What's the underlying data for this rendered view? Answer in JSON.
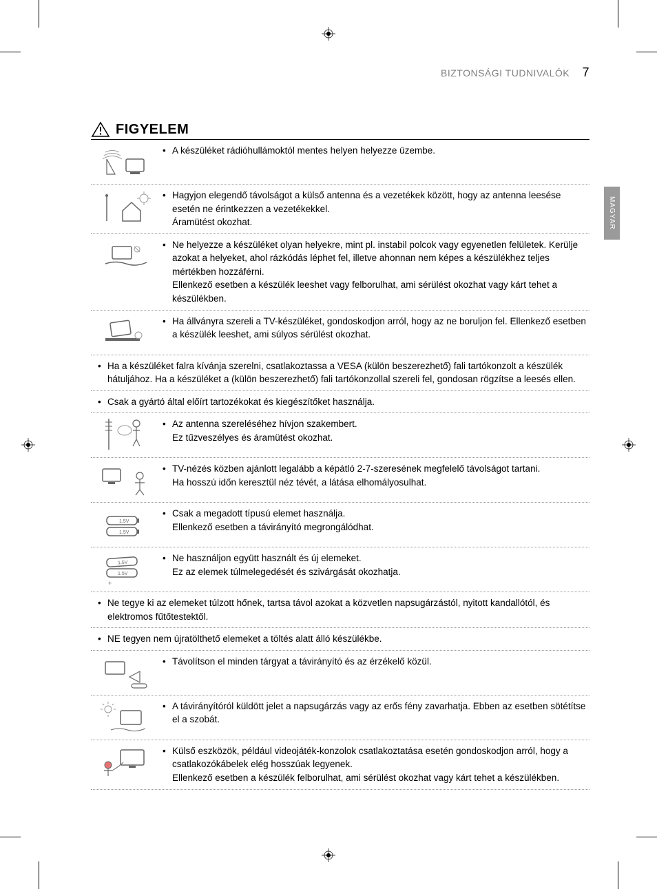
{
  "header": {
    "section_title": "BIZTONSÁGI TUDNIVALÓK",
    "page_number": "7"
  },
  "side_tab": "MAGYAR",
  "warning_heading": "FIGYELEM",
  "items": [
    {
      "type": "icon",
      "icon": "radio-waves-tv",
      "text": "A készüléket rádióhullámoktól mentes helyen helyezze üzembe."
    },
    {
      "type": "icon",
      "icon": "antenna-house",
      "text": "Hagyjon elegendő távolságot a külső antenna és a vezetékek között, hogy az antenna leesése esetén ne érintkezzen a vezetékekkel.\nÁramütést okozhat."
    },
    {
      "type": "icon",
      "icon": "unstable-surface",
      "text": "Ne helyezze a készüléket olyan helyekre, mint pl. instabil polcok vagy egyenetlen felületek. Kerülje azokat a helyeket, ahol rázkódás léphet fel, illetve ahonnan nem képes a készülékhez teljes mértékben hozzáférni.\nEllenkező esetben a készülék leeshet vagy felborulhat, ami sérülést okozhat vagy kárt tehet a készülékben."
    },
    {
      "type": "icon",
      "icon": "tv-stand-tip",
      "text": "Ha állványra szereli a TV-készüléket, gondoskodjon arról, hogy az ne boruljon fel. Ellenkező esetben a készülék leeshet, ami súlyos sérülést okozhat."
    },
    {
      "type": "full",
      "text": "Ha a készüléket falra kívánja szerelni, csatlakoztassa a VESA (külön beszerezhető) fali tartókonzolt a készülék hátuljához. Ha a készüléket a (külön beszerezhető) fali tartókonzollal szereli fel, gondosan rögzítse a leesés ellen."
    },
    {
      "type": "full",
      "text": "Csak a gyártó által előírt tartozékokat és kiegészítőket használja."
    },
    {
      "type": "icon",
      "icon": "installer-antenna",
      "text": "Az antenna szereléséhez hívjon szakembert.\nEz tűzveszélyes és áramütést okozhat."
    },
    {
      "type": "icon",
      "icon": "tv-distance-viewer",
      "text": "TV-nézés közben ajánlott legalább a képátló 2-7-szeresének megfelelő távolságot tartani.\nHa hosszú időn keresztül néz tévét, a látása elhomályosulhat."
    },
    {
      "type": "icon",
      "icon": "batteries-same",
      "text": "Csak a megadott típusú elemet használja.\nEllenkező esetben a távirányító megrongálódhat."
    },
    {
      "type": "icon",
      "icon": "batteries-mixed",
      "text": "Ne használjon együtt használt és új elemeket.\nEz az elemek túlmelegedését és szivárgását okozhatja."
    },
    {
      "type": "full",
      "text": "Ne tegye ki az elemeket túlzott hőnek, tartsa távol azokat a közvetlen napsugárzástól, nyitott kandallótól, és elektromos fűtőtestektől."
    },
    {
      "type": "full",
      "text": "NE tegyen nem újratölthető elemeket a töltés alatt álló készülékbe."
    },
    {
      "type": "icon",
      "icon": "remote-obstacle",
      "text": "Távolítson el minden tárgyat a távirányító és az érzékelő közül."
    },
    {
      "type": "icon",
      "icon": "sunlight-tv",
      "text": "A távirányítóról küldött jelet a napsugárzás vagy az erős fény zavarhatja. Ebben az esetben sötétítse el a szobát."
    },
    {
      "type": "icon",
      "icon": "gaming-cable",
      "text": "Külső eszközök, például videojáték-konzolok csatlakoztatása esetén gondoskodjon arról, hogy a csatlakozókábelek elég hosszúak legyenek.\nEllenkező esetben a készülék felborulhat, ami sérülést okozhat vagy kárt tehet a készülékben."
    }
  ],
  "icon_svgs": {
    "radio-waves-tv": "<svg viewBox='0 0 78 50'><rect x='40' y='20' width='26' height='18' rx='2' fill='none' stroke='#666' stroke-width='1.5'/><rect x='46' y='39' width='14' height='3' fill='#666'/><path d='M10 10 Q20 5 30 10 M8 15 Q20 8 32 15 M6 20 Q20 11 34 20' fill='none' stroke='#999' stroke-width='1'/><path d='M12 42 L12 20 L24 42 Z' fill='none' stroke='#666' stroke-width='1.2'/></svg>",
    "antenna-house": "<svg viewBox='0 0 78 50'><line x1='12' y1='8' x2='12' y2='45' stroke='#666' stroke-width='1.5'/><circle cx='12' cy='8' r='2' fill='#666'/><path d='M35 30 L48 18 L61 30 L61 45 L35 45 Z' fill='none' stroke='#666' stroke-width='1.5'/><circle cx='66' cy='12' r='6' fill='none' stroke='#999' stroke-width='1'/><path d='M66 6 L66 2 M66 18 L66 22 M60 12 L56 12 M72 12 L76 12' stroke='#999' stroke-width='1'/></svg>",
    "unstable-surface": "<svg viewBox='0 0 78 50'><rect x='20' y='10' width='28' height='18' rx='2' fill='none' stroke='#666' stroke-width='1.5'/><path d='M10 35 Q25 30 40 35 Q55 40 70 33' fill='none' stroke='#666' stroke-width='1.5'/><circle cx='56' cy='14' r='4' fill='none' stroke='#999' stroke-width='1'/><line x1='52' y1='10' x2='60' y2='18' stroke='#999' stroke-width='1'/></svg>",
    "tv-stand-tip": "<svg viewBox='0 0 78 50'><rect x='18' y='8' width='28' height='20' rx='2' fill='none' stroke='#666' stroke-width='1.5' transform='rotate(-8 32 18)'/><rect x='10' y='32' width='50' height='4' fill='#666'/><circle cx='58' cy='28' r='5' fill='none' stroke='#999' stroke-width='1'/></svg>",
    "installer-antenna": "<svg viewBox='0 0 78 60'><circle cx='55' cy='12' r='5' fill='none' stroke='#666' stroke-width='1.2'/><path d='M55 17 L55 35 M50 22 L60 22 M50 45 L55 35 L60 45' fill='none' stroke='#666' stroke-width='1.2'/><line x1='15' y1='5' x2='15' y2='50' stroke='#666' stroke-width='1.5'/><path d='M10 10 L20 10 M10 16 L20 16 M10 22 L20 22' stroke='#666' stroke-width='1'/><ellipse cx='38' cy='22' rx='10' ry='7' fill='none' stroke='#999' stroke-width='1'/></svg>",
    "tv-distance-viewer": "<svg viewBox='0 0 78 50'><rect x='6' y='8' width='26' height='18' rx='2' fill='none' stroke='#666' stroke-width='1.5'/><rect x='14' y='27' width='10' height='3' fill='#666'/><circle cx='60' cy='18' r='5' fill='none' stroke='#666' stroke-width='1.2'/><path d='M60 23 L60 38 M53 28 L67 28 M54 46 L60 38 L66 46' fill='none' stroke='#666' stroke-width='1.2'/></svg>",
    "batteries-same": "<svg viewBox='0 0 78 50'><rect x='12' y='12' width='44' height='12' rx='5' fill='none' stroke='#666' stroke-width='1.5'/><rect x='56' y='15' width='3' height='6' fill='#666'/><text x='30' y='21' font-size='7' fill='#666'>1.5V</text><rect x='12' y='28' width='44' height='12' rx='5' fill='none' stroke='#666' stroke-width='1.5'/><rect x='56' y='31' width='3' height='6' fill='#666'/><text x='30' y='37' font-size='7' fill='#666'>1.5V</text></svg>",
    "batteries-mixed": "<svg viewBox='0 0 78 56'><rect x='12' y='10' width='44' height='12' rx='5' fill='none' stroke='#666' stroke-width='1.5' transform='rotate(-4 34 16)'/><text x='28' y='19' font-size='7' fill='#666' transform='rotate(-4 34 16)'>1.5V</text><rect x='12' y='26' width='44' height='12' rx='5' fill='none' stroke='#666' stroke-width='1.5'/><text x='28' y='35' font-size='7' fill='#666'>1.5V</text><text x='14' y='50' font-size='9' fill='#666'>+</text></svg>",
    "remote-obstacle": "<svg viewBox='0 0 78 50'><rect x='10' y='8' width='28' height='18' rx='2' fill='none' stroke='#666' stroke-width='1.5'/><path d='M45 30 L60 22 L60 38 Z' fill='none' stroke='#666' stroke-width='1.2'/><rect x='48' y='40' width='22' height='6' rx='3' fill='none' stroke='#666' stroke-width='1.2'/></svg>",
    "sunlight-tv": "<svg viewBox='0 0 78 50'><circle cx='14' cy='12' r='5' fill='none' stroke='#999' stroke-width='1'/><path d='M14 4 L14 1 M14 20 L14 23 M6 12 L3 12 M22 12 L25 12 M8 6 L6 4 M20 6 L22 4' stroke='#999' stroke-width='1'/><rect x='32' y='14' width='30' height='20' rx='2' fill='none' stroke='#666' stroke-width='1.5'/><path d='M18 42 Q30 38 42 42 Q54 46 68 40' fill='none' stroke='#666' stroke-width='1'/></svg>",
    "gaming-cable": "<svg viewBox='0 0 78 50'><rect x='32' y='6' width='34' height='22' rx='2' fill='none' stroke='#666' stroke-width='1.5'/><rect x='44' y='29' width='10' height='3' fill='#666'/><circle cx='14' cy='28' r='5' fill='#e57373' stroke='#666' stroke-width='1'/><path d='M14 33 L14 44 M8 36 L20 36' stroke='#666' stroke-width='1.2'/><path d='M20 36 Q30 30 36 24' fill='none' stroke='#666' stroke-width='1'/></svg>"
  }
}
